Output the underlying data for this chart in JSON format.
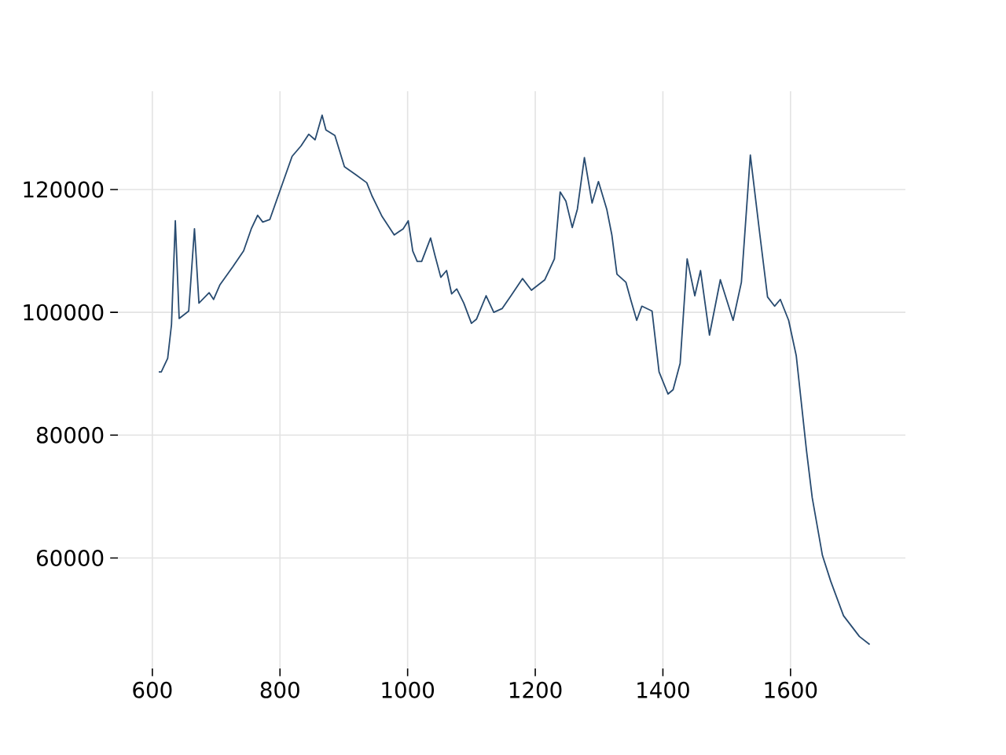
{
  "chart_data": {
    "type": "line",
    "x": [
      610,
      614,
      624,
      630,
      636,
      642,
      657,
      666,
      673,
      689,
      696,
      706,
      726,
      743,
      755,
      765,
      773,
      784,
      803,
      819,
      833,
      845,
      855,
      866,
      872,
      886,
      901,
      919,
      936,
      944,
      960,
      979,
      993,
      1001,
      1008,
      1015,
      1022,
      1036,
      1043,
      1052,
      1061,
      1069,
      1077,
      1088,
      1100,
      1108,
      1123,
      1135,
      1148,
      1162,
      1180,
      1194,
      1215,
      1230,
      1239,
      1248,
      1258,
      1266,
      1277,
      1289,
      1299,
      1312,
      1320,
      1328,
      1342,
      1350,
      1359,
      1367,
      1383,
      1394,
      1408,
      1416,
      1427,
      1438,
      1450,
      1459,
      1473,
      1490,
      1510,
      1523,
      1537,
      1552,
      1564,
      1575,
      1584,
      1597,
      1609,
      1625,
      1634,
      1650,
      1663,
      1683,
      1708,
      1724
    ],
    "series": [
      {
        "color": "#284b70",
        "values": [
          90300,
          90300,
          92500,
          98000,
          114900,
          99000,
          100200,
          113600,
          101500,
          103200,
          102100,
          104500,
          107400,
          110000,
          113600,
          115800,
          114700,
          115100,
          120700,
          125400,
          127100,
          129000,
          128100,
          132100,
          129700,
          128800,
          123700,
          122400,
          121100,
          119000,
          115600,
          112600,
          113600,
          114900,
          110000,
          108300,
          108300,
          112100,
          109200,
          105700,
          106800,
          103000,
          103800,
          101500,
          98200,
          98900,
          102700,
          100000,
          100600,
          102700,
          105500,
          103600,
          105300,
          108700,
          119600,
          118100,
          113800,
          116800,
          125200,
          117800,
          121300,
          116800,
          112600,
          106200,
          104900,
          101900,
          98700,
          101000,
          100200,
          90300,
          86700,
          87400,
          91700,
          108700,
          102700,
          106800,
          96300,
          105300,
          98700,
          104900,
          125600,
          112600,
          102500,
          101000,
          102100,
          98700,
          92900,
          77500,
          69800,
          60400,
          56200,
          50600,
          47200,
          45900
        ]
      }
    ],
    "xlim": [
      546,
      1780
    ],
    "ylim": [
      42000,
      136000
    ],
    "xticks": [
      600,
      800,
      1000,
      1200,
      1400,
      1600
    ],
    "yticks": [
      60000,
      80000,
      100000,
      120000
    ],
    "grid": true,
    "marker": "none",
    "line_style": "solid"
  }
}
